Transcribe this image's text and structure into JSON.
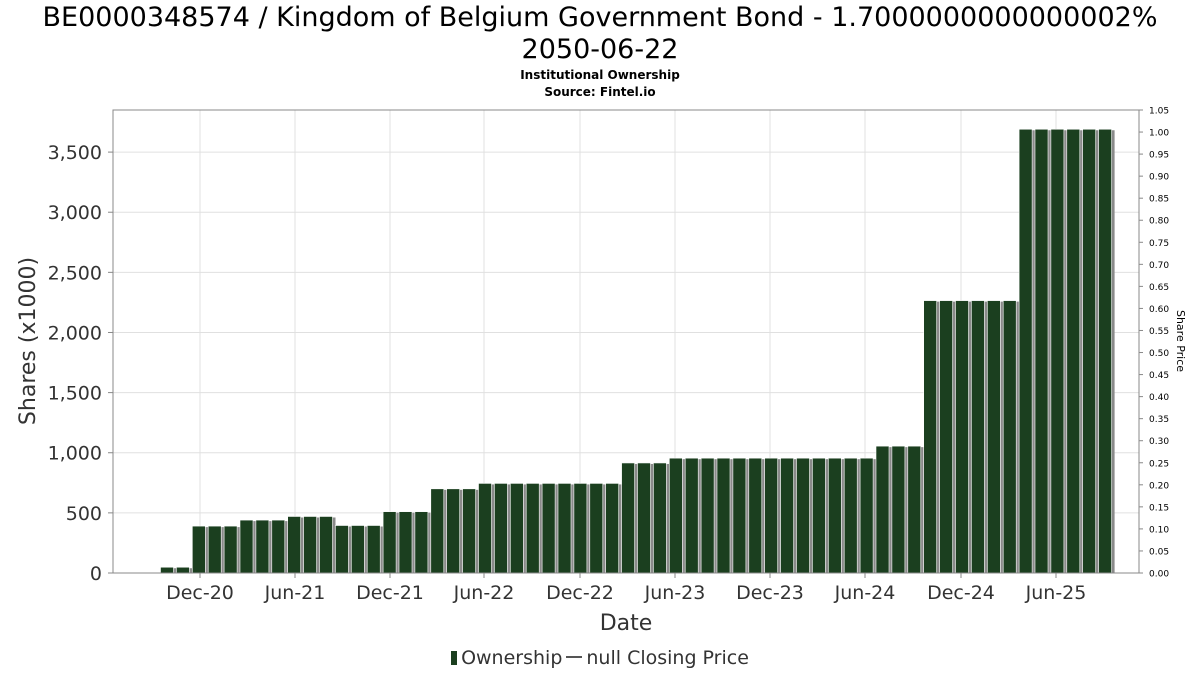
{
  "page": {
    "title": "BE0000348574 / Kingdom of Belgium Government Bond - 1.7000000000000002% 2050-06-22",
    "subtitle1": "Institutional Ownership",
    "subtitle2": "Source: Fintel.io"
  },
  "legend": {
    "ownership": "Ownership",
    "price": "null Closing Price"
  },
  "colors": {
    "bar": "#1b3f1f",
    "bar_shadow": "#8a8a8a",
    "grid": "#e0e0e0",
    "axis": "#888888"
  },
  "chart_data": {
    "type": "bar",
    "title": "BE0000348574 / Kingdom of Belgium Government Bond - 1.7000000000000002% 2050-06-22",
    "xlabel": "Date",
    "ylabel": "Shares (x1000)",
    "y2label": "Share Price",
    "ylim": [
      0,
      3850
    ],
    "y2lim": [
      0,
      1.05
    ],
    "yticks": [
      0,
      500,
      1000,
      1500,
      2000,
      2500,
      3000,
      3500
    ],
    "ytick_labels": [
      "0",
      "500",
      "1,000",
      "1,500",
      "2,000",
      "2,500",
      "3,000",
      "3,500"
    ],
    "y2tick_labels": [
      "0.00",
      "0.05",
      "0.10",
      "0.15",
      "0.20",
      "0.25",
      "0.30",
      "0.35",
      "0.40",
      "0.45",
      "0.50",
      "0.55",
      "0.60",
      "0.65",
      "0.70",
      "0.75",
      "0.80",
      "0.85",
      "0.90",
      "0.95",
      "1.00",
      "1.05"
    ],
    "xtick_labels": [
      "Dec-20",
      "Jun-21",
      "Dec-21",
      "Jun-22",
      "Dec-22",
      "Jun-23",
      "Dec-23",
      "Jun-24",
      "Dec-24",
      "Jun-25"
    ],
    "grid": true,
    "legend_position": "bottom",
    "series": [
      {
        "name": "Ownership",
        "values": [
          48,
          48,
          390,
          390,
          390,
          440,
          440,
          440,
          470,
          470,
          470,
          395,
          395,
          395,
          510,
          510,
          510,
          700,
          700,
          700,
          745,
          745,
          745,
          745,
          745,
          745,
          745,
          745,
          745,
          915,
          915,
          915,
          955,
          955,
          955,
          955,
          955,
          955,
          955,
          955,
          955,
          955,
          955,
          955,
          955,
          1055,
          1055,
          1055,
          2265,
          2265,
          2265,
          2265,
          2265,
          2265,
          3690,
          3690,
          3690,
          3690,
          3690,
          3690
        ]
      }
    ]
  }
}
